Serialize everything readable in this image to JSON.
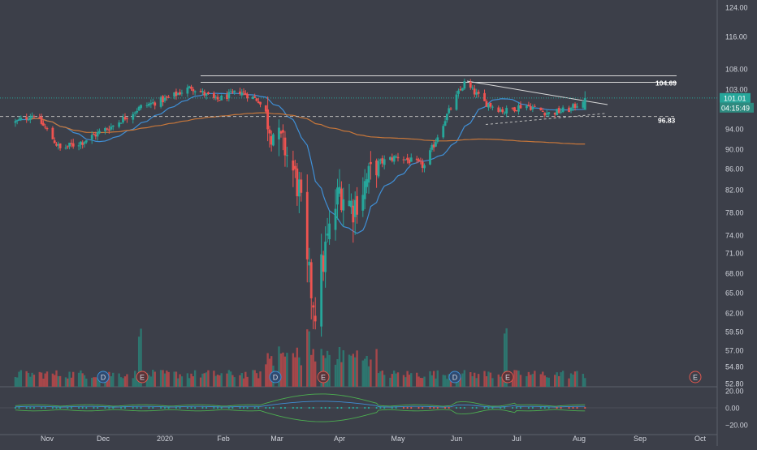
{
  "theme": {
    "background": "#3c3f49",
    "up": "#26a69a",
    "down": "#ef5350",
    "ma_fast": "#3f8fd6",
    "ma_slow": "#c8773a",
    "axis_text": "#d1d4dc",
    "grid": "#474b56",
    "trendline": "#d9d9d9"
  },
  "price_axis": {
    "labels": [
      "124.00",
      "116.00",
      "108.00",
      "103.00",
      "94.00",
      "90.00",
      "86.00",
      "82.00",
      "78.00",
      "74.00",
      "71.00",
      "68.00",
      "65.00",
      "62.00",
      "59.50",
      "57.00",
      "54.80",
      "52.80"
    ],
    "current_price": "101.01",
    "countdown": "04:15:49"
  },
  "osc_axis": {
    "labels": [
      "20.00",
      "0.00",
      "−20.00"
    ]
  },
  "time_axis": {
    "labels": [
      "Nov",
      "Dec",
      "2020",
      "Feb",
      "Mar",
      "Apr",
      "May",
      "Jun",
      "Jul",
      "Aug",
      "Sep",
      "Oct"
    ]
  },
  "annotations": {
    "resistance": "104.69",
    "support": "96.83"
  },
  "events": [
    {
      "label": "D",
      "month_pos": "Dec",
      "type": "dividend"
    },
    {
      "label": "E",
      "month_pos": "Dec",
      "type": "earnings"
    },
    {
      "label": "D",
      "month_pos": "Mar",
      "type": "dividend"
    },
    {
      "label": "E",
      "month_pos": "Mar",
      "type": "earnings"
    },
    {
      "label": "D",
      "month_pos": "Jun",
      "type": "dividend"
    },
    {
      "label": "E",
      "month_pos": "Jul",
      "type": "earnings"
    },
    {
      "label": "E",
      "month_pos": "Sep",
      "type": "earnings-upcoming"
    }
  ],
  "chart_data": {
    "type": "candlestick",
    "price_range": [
      52.8,
      124.0
    ],
    "keypoints": [
      {
        "date": "2019-10-15",
        "close": 95.5
      },
      {
        "date": "2019-10-25",
        "close": 97.3
      },
      {
        "date": "2019-11-08",
        "close": 90.0
      },
      {
        "date": "2019-11-20",
        "close": 91.5
      },
      {
        "date": "2019-12-05",
        "close": 94.5
      },
      {
        "date": "2019-12-20",
        "close": 99.0
      },
      {
        "date": "2020-01-03",
        "close": 101.0
      },
      {
        "date": "2020-01-15",
        "close": 103.5
      },
      {
        "date": "2020-01-28",
        "close": 100.5
      },
      {
        "date": "2020-02-10",
        "close": 102.5
      },
      {
        "date": "2020-02-20",
        "close": 100.5
      },
      {
        "date": "2020-02-27",
        "close": 94.0
      },
      {
        "date": "2020-03-05",
        "close": 90.0
      },
      {
        "date": "2020-03-12",
        "close": 82.0
      },
      {
        "date": "2020-03-16",
        "close": 68.0
      },
      {
        "date": "2020-03-20",
        "close": 63.0
      },
      {
        "date": "2020-03-24",
        "close": 70.0
      },
      {
        "date": "2020-04-01",
        "close": 82.0
      },
      {
        "date": "2020-04-08",
        "close": 79.0
      },
      {
        "date": "2020-04-20",
        "close": 87.0
      },
      {
        "date": "2020-05-01",
        "close": 88.5
      },
      {
        "date": "2020-05-15",
        "close": 86.5
      },
      {
        "date": "2020-05-28",
        "close": 98.0
      },
      {
        "date": "2020-06-05",
        "close": 104.5
      },
      {
        "date": "2020-06-15",
        "close": 100.0
      },
      {
        "date": "2020-06-25",
        "close": 98.0
      },
      {
        "date": "2020-07-05",
        "close": 99.5
      },
      {
        "date": "2020-07-17",
        "close": 97.5
      },
      {
        "date": "2020-07-28",
        "close": 98.5
      },
      {
        "date": "2020-08-04",
        "close": 101.01
      }
    ],
    "volume_spikes": [
      "2019-12-20",
      "2020-03-16",
      "2020-06-26"
    ],
    "moving_averages": [
      "fast (blue)",
      "slow (orange)"
    ],
    "horizontal_levels": [
      104.69,
      96.83
    ],
    "oscillator_range": [
      -20,
      20
    ]
  }
}
